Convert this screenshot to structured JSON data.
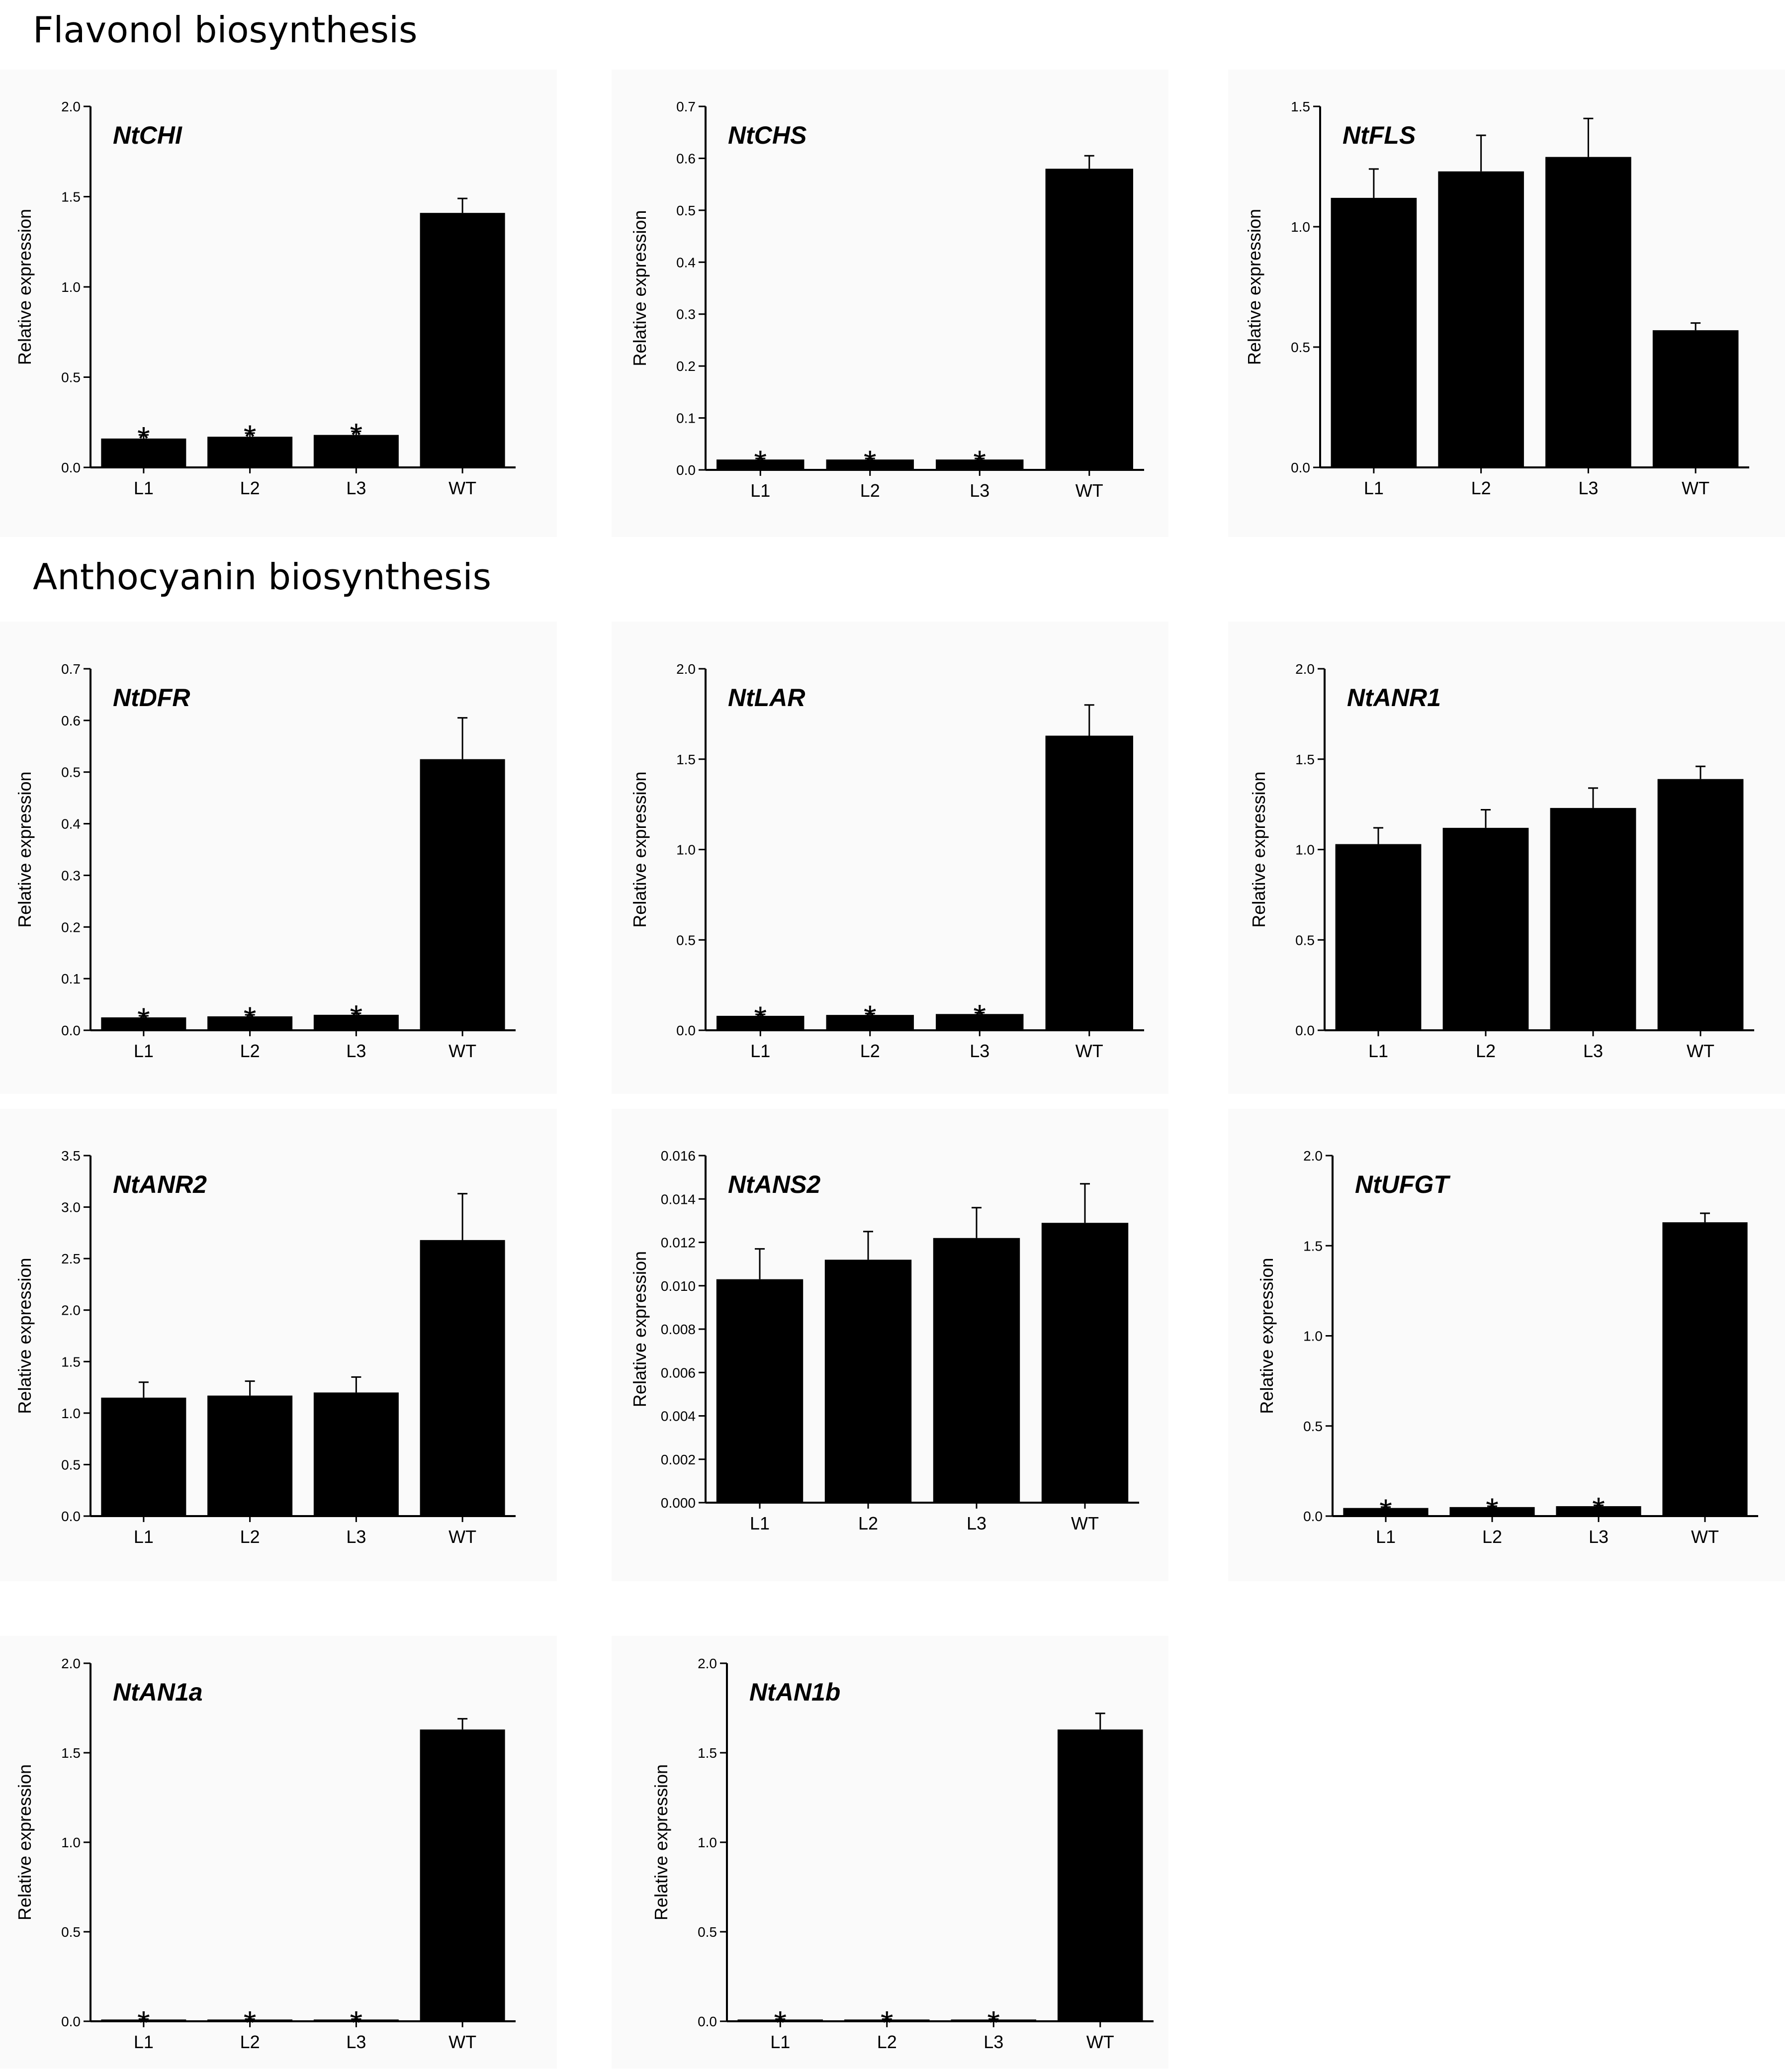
{
  "sections": {
    "flavonol": "Flavonol biosynthesis",
    "anthocyanin": "Anthocyanin biosynthesis"
  },
  "colors": {
    "bar": "#000000",
    "axis": "#000000",
    "panel_bg": "#fafafa"
  },
  "chart_data": [
    {
      "type": "bar",
      "title": "NtCHI",
      "ylabel": "Relative expression",
      "categories": [
        "L1",
        "L2",
        "L3",
        "WT"
      ],
      "values": [
        0.16,
        0.17,
        0.18,
        1.41
      ],
      "errors": [
        0.02,
        0.02,
        0.02,
        0.08
      ],
      "significant": [
        "*",
        "*",
        "*",
        ""
      ],
      "ylim": [
        0,
        2.0
      ],
      "yticks": [
        "0.0",
        "0.5",
        "1.0",
        "1.5",
        "2.0"
      ],
      "grid": false
    },
    {
      "type": "bar",
      "title": "NtCHS",
      "ylabel": "Relative expression",
      "categories": [
        "L1",
        "L2",
        "L3",
        "WT"
      ],
      "values": [
        0.02,
        0.02,
        0.02,
        0.58
      ],
      "errors": [
        0.002,
        0.002,
        0.002,
        0.025
      ],
      "significant": [
        "*",
        "*",
        "*",
        ""
      ],
      "ylim": [
        0,
        0.7
      ],
      "yticks": [
        "0.0",
        "0.1",
        "0.2",
        "0.3",
        "0.4",
        "0.5",
        "0.6",
        "0.7"
      ],
      "grid": false
    },
    {
      "type": "bar",
      "title": "NtFLS",
      "ylabel": "Relative expression",
      "categories": [
        "L1",
        "L2",
        "L3",
        "WT"
      ],
      "values": [
        1.12,
        1.23,
        1.29,
        0.57
      ],
      "errors": [
        0.12,
        0.15,
        0.16,
        0.03
      ],
      "significant": [
        "",
        "",
        "",
        ""
      ],
      "ylim": [
        0,
        1.5
      ],
      "yticks": [
        "0.0",
        "0.5",
        "1.0",
        "1.5"
      ],
      "grid": false
    },
    {
      "type": "bar",
      "title": "NtDFR",
      "ylabel": "Relative expression",
      "categories": [
        "L1",
        "L2",
        "L3",
        "WT"
      ],
      "values": [
        0.025,
        0.027,
        0.03,
        0.525
      ],
      "errors": [
        0.003,
        0.003,
        0.003,
        0.08
      ],
      "significant": [
        "*",
        "*",
        "*",
        ""
      ],
      "ylim": [
        0,
        0.7
      ],
      "yticks": [
        "0.0",
        "0.1",
        "0.2",
        "0.3",
        "0.4",
        "0.5",
        "0.6",
        "0.7"
      ],
      "grid": false
    },
    {
      "type": "bar",
      "title": "NtLAR",
      "ylabel": "Relative expression",
      "categories": [
        "L1",
        "L2",
        "L3",
        "WT"
      ],
      "values": [
        0.08,
        0.085,
        0.09,
        1.63
      ],
      "errors": [
        0.008,
        0.008,
        0.008,
        0.17
      ],
      "significant": [
        "*",
        "*",
        "*",
        ""
      ],
      "ylim": [
        0,
        2.0
      ],
      "yticks": [
        "0.0",
        "0.5",
        "1.0",
        "1.5",
        "2.0"
      ],
      "grid": false
    },
    {
      "type": "bar",
      "title": "NtANR1",
      "ylabel": "Relative expression",
      "categories": [
        "L1",
        "L2",
        "L3",
        "WT"
      ],
      "values": [
        1.03,
        1.12,
        1.23,
        1.39
      ],
      "errors": [
        0.09,
        0.1,
        0.11,
        0.07
      ],
      "significant": [
        "",
        "",
        "",
        ""
      ],
      "ylim": [
        0,
        2.0
      ],
      "yticks": [
        "0.0",
        "0.5",
        "1.0",
        "1.5",
        "2.0"
      ],
      "grid": false
    },
    {
      "type": "bar",
      "title": "NtANR2",
      "ylabel": "Relative expression",
      "categories": [
        "L1",
        "L2",
        "L3",
        "WT"
      ],
      "values": [
        1.15,
        1.17,
        1.2,
        2.68
      ],
      "errors": [
        0.15,
        0.14,
        0.15,
        0.45
      ],
      "significant": [
        "",
        "",
        "",
        ""
      ],
      "ylim": [
        0,
        3.5
      ],
      "yticks": [
        "0.0",
        "0.5",
        "1.0",
        "1.5",
        "2.0",
        "2.5",
        "3.0",
        "3.5"
      ],
      "grid": false
    },
    {
      "type": "bar",
      "title": "NtANS2",
      "ylabel": "Relative expression",
      "categories": [
        "L1",
        "L2",
        "L3",
        "WT"
      ],
      "values": [
        0.0103,
        0.0112,
        0.0122,
        0.0129
      ],
      "errors": [
        0.0014,
        0.0013,
        0.0014,
        0.0018
      ],
      "significant": [
        "",
        "",
        "",
        ""
      ],
      "ylim": [
        0,
        0.016
      ],
      "yticks": [
        "0.000",
        "0.002",
        "0.004",
        "0.006",
        "0.008",
        "0.010",
        "0.012",
        "0.014",
        "0.016"
      ],
      "grid": false
    },
    {
      "type": "bar",
      "title": "NtUFGT",
      "ylabel": "Relative expression",
      "categories": [
        "L1",
        "L2",
        "L3",
        "WT"
      ],
      "values": [
        0.045,
        0.05,
        0.055,
        1.63
      ],
      "errors": [
        0.005,
        0.005,
        0.005,
        0.05
      ],
      "significant": [
        "*",
        "*",
        "*",
        ""
      ],
      "ylim": [
        0,
        2.0
      ],
      "yticks": [
        "0.0",
        "0.5",
        "1.0",
        "1.5",
        "2.0"
      ],
      "grid": false
    },
    {
      "type": "bar",
      "title": "NtAN1a",
      "ylabel": "Relative expression",
      "categories": [
        "L1",
        "L2",
        "L3",
        "WT"
      ],
      "values": [
        0.01,
        0.01,
        0.01,
        1.63
      ],
      "errors": [
        0.002,
        0.002,
        0.002,
        0.06
      ],
      "significant": [
        "*",
        "*",
        "*",
        ""
      ],
      "ylim": [
        0,
        2.0
      ],
      "yticks": [
        "0.0",
        "0.5",
        "1.0",
        "1.5",
        "2.0"
      ],
      "grid": false
    },
    {
      "type": "bar",
      "title": "NtAN1b",
      "ylabel": "Relative expression",
      "categories": [
        "L1",
        "L2",
        "L3",
        "WT"
      ],
      "values": [
        0.01,
        0.01,
        0.01,
        1.63
      ],
      "errors": [
        0.002,
        0.002,
        0.002,
        0.09
      ],
      "significant": [
        "*",
        "*",
        "*",
        ""
      ],
      "ylim": [
        0,
        2.0
      ],
      "yticks": [
        "0.0",
        "0.5",
        "1.0",
        "1.5",
        "2.0"
      ],
      "grid": false
    }
  ]
}
